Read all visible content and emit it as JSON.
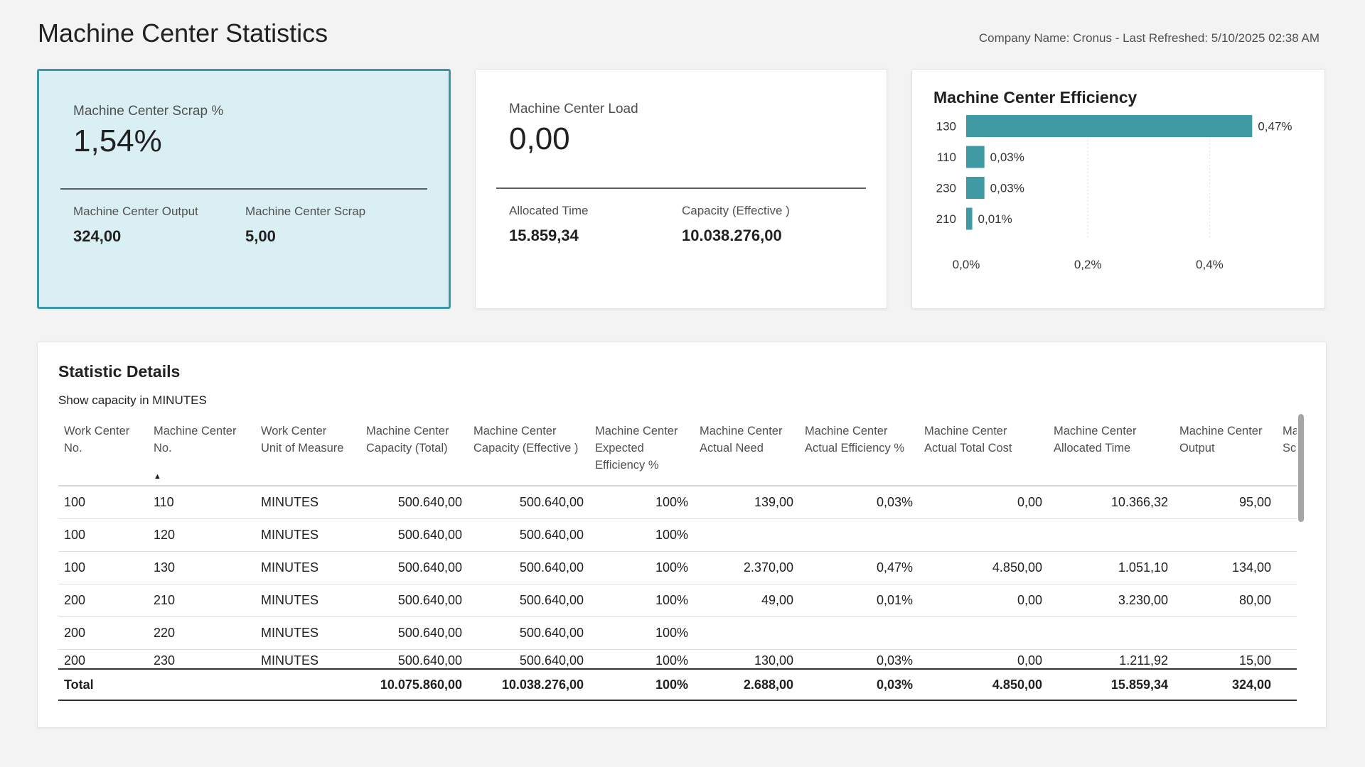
{
  "page": {
    "title": "Machine Center Statistics",
    "company_info": "Company Name: Cronus - Last Refreshed: 5/10/2025 02:38 AM"
  },
  "scrap_card": {
    "title": "Machine Center Scrap %",
    "value": "1,54%",
    "output_label": "Machine Center Output",
    "output_value": "324,00",
    "scrap_label": "Machine Center Scrap",
    "scrap_value": "5,00"
  },
  "load_card": {
    "title": "Machine Center Load",
    "value": "0,00",
    "allocated_label": "Allocated Time",
    "allocated_value": "15.859,34",
    "capacity_label": "Capacity (Effective )",
    "capacity_value": "10.038.276,00"
  },
  "efficiency_card": {
    "title": "Machine Center Efficiency"
  },
  "chart_data": {
    "type": "bar",
    "orientation": "horizontal",
    "categories": [
      "130",
      "110",
      "230",
      "210"
    ],
    "values": [
      0.47,
      0.03,
      0.03,
      0.01
    ],
    "data_labels": [
      "0,47%",
      "0,03%",
      "0,03%",
      "0,01%"
    ],
    "x_ticks": [
      "0,0%",
      "0,2%",
      "0,4%"
    ],
    "x_tick_values": [
      0,
      0.2,
      0.4
    ],
    "xlim": [
      0,
      0.5
    ],
    "grid": true,
    "bar_color": "#3f9aa3"
  },
  "details": {
    "title": "Statistic Details",
    "subtitle": "Show capacity in MINUTES",
    "headers": [
      [
        "Work Center",
        "No."
      ],
      [
        "Machine Center",
        "No."
      ],
      [
        "Work Center",
        "Unit of Measure"
      ],
      [
        "Machine Center",
        "Capacity (Total)"
      ],
      [
        "Machine Center",
        "Capacity (Effective )"
      ],
      [
        "Machine Center",
        "Expected",
        "Efficiency %"
      ],
      [
        "Machine Center",
        "Actual Need"
      ],
      [
        "Machine Center",
        "Actual Efficiency %"
      ],
      [
        "Machine Center",
        "Actual Total Cost"
      ],
      [
        "Machine Center",
        "Allocated Time"
      ],
      [
        "Machine Center",
        "Output"
      ],
      [
        "Ma",
        "Sc"
      ]
    ],
    "sort_indicator": "▲",
    "rows": [
      [
        "100",
        "110",
        "MINUTES",
        "500.640,00",
        "500.640,00",
        "100%",
        "139,00",
        "0,03%",
        "0,00",
        "10.366,32",
        "95,00",
        ""
      ],
      [
        "100",
        "120",
        "MINUTES",
        "500.640,00",
        "500.640,00",
        "100%",
        "",
        "",
        "",
        "",
        "",
        ""
      ],
      [
        "100",
        "130",
        "MINUTES",
        "500.640,00",
        "500.640,00",
        "100%",
        "2.370,00",
        "0,47%",
        "4.850,00",
        "1.051,10",
        "134,00",
        ""
      ],
      [
        "200",
        "210",
        "MINUTES",
        "500.640,00",
        "500.640,00",
        "100%",
        "49,00",
        "0,01%",
        "0,00",
        "3.230,00",
        "80,00",
        ""
      ],
      [
        "200",
        "220",
        "MINUTES",
        "500.640,00",
        "500.640,00",
        "100%",
        "",
        "",
        "",
        "",
        "",
        ""
      ],
      [
        "200",
        "230",
        "MINUTES",
        "500.640,00",
        "500.640,00",
        "100%",
        "130,00",
        "0,03%",
        "0,00",
        "1.211,92",
        "15,00",
        ""
      ]
    ],
    "total": [
      "Total",
      "",
      "",
      "10.075.860,00",
      "10.038.276,00",
      "100%",
      "2.688,00",
      "0,03%",
      "4.850,00",
      "15.859,34",
      "324,00",
      ""
    ]
  },
  "colors": {
    "accent": "#3b97a3",
    "selected_card_bg": "#d9eff3"
  }
}
